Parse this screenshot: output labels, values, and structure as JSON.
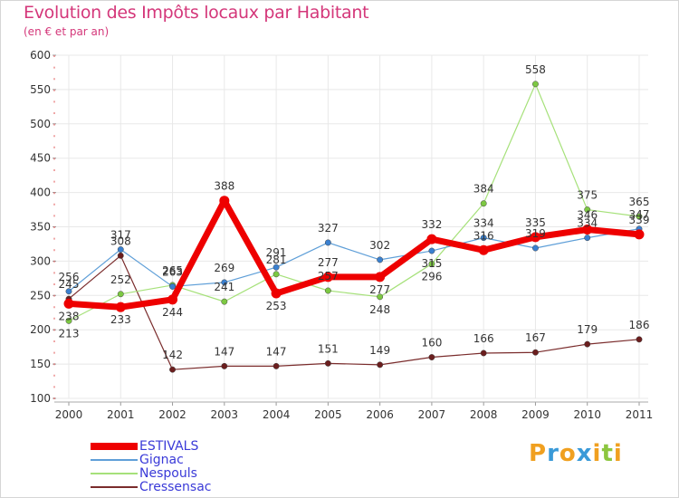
{
  "title": "Evolution des Impôts locaux par Habitant",
  "subtitle": "(en € et par an)",
  "brand": {
    "letters": [
      "P",
      "r",
      "o",
      "x",
      "i",
      "t",
      "i"
    ],
    "colors": [
      "#f0a020",
      "#3a9ad8",
      "#f0a020",
      "#3a9ad8",
      "#f0a020",
      "#8cc63f",
      "#f0a020"
    ]
  },
  "chart_data": {
    "type": "line",
    "categories": [
      "2000",
      "2001",
      "2002",
      "2003",
      "2004",
      "2005",
      "2006",
      "2007",
      "2008",
      "2009",
      "2010",
      "2011"
    ],
    "ylim": [
      100,
      600
    ],
    "yticks": [
      "100",
      "150",
      "200",
      "250",
      "300",
      "350",
      "400",
      "450",
      "500",
      "550",
      "600"
    ],
    "grid": true,
    "legend_position": "bottom-left",
    "series": [
      {
        "name": "ESTIVALS",
        "color": "#ee0000",
        "marker_color": "#ee0000",
        "values": [
          238,
          233,
          244,
          388,
          253,
          277,
          277,
          332,
          316,
          335,
          346,
          339
        ],
        "labels": [
          "238",
          "233",
          "244",
          "388",
          "253",
          "277",
          "277",
          "332",
          "316",
          "335",
          "346",
          "339"
        ]
      },
      {
        "name": "Gignac",
        "color": "#5f9fd8",
        "marker_color": "#3a80d0",
        "values": [
          256,
          317,
          263,
          269,
          291,
          327,
          302,
          315,
          334,
          319,
          334,
          347
        ],
        "labels": [
          "256",
          "317",
          "263",
          "269",
          "291",
          "327",
          "302",
          "315",
          "334",
          "319",
          "334",
          "347"
        ]
      },
      {
        "name": "Nespouls",
        "color": "#a6e17a",
        "marker_color": "#7cc842",
        "values": [
          213,
          252,
          265,
          241,
          281,
          257,
          248,
          296,
          384,
          558,
          375,
          365
        ],
        "labels": [
          "213",
          "252",
          "265",
          "241",
          "281",
          "257",
          "248",
          "296",
          "384",
          "558",
          "375",
          "365"
        ]
      },
      {
        "name": "Cressensac",
        "color": "#7a2c2c",
        "marker_color": "#6b1e1e",
        "values": [
          245,
          308,
          142,
          147,
          147,
          151,
          149,
          160,
          166,
          167,
          179,
          186
        ],
        "labels": [
          "245",
          "308",
          "142",
          "147",
          "147",
          "151",
          "149",
          "160",
          "166",
          "167",
          "179",
          "186"
        ]
      }
    ]
  }
}
